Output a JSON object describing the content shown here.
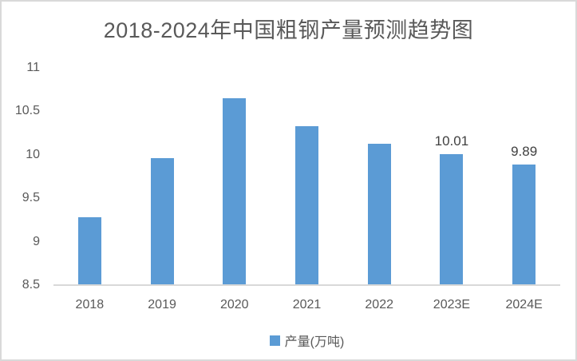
{
  "chart_data": {
    "type": "bar",
    "title": "2018-2024年中国粗钢产量预测趋势图",
    "categories": [
      "2018",
      "2019",
      "2020",
      "2021",
      "2022",
      "2023E",
      "2024E"
    ],
    "series": [
      {
        "name": "产量(万吨)",
        "values": [
          9.28,
          9.96,
          10.65,
          10.33,
          10.13,
          10.01,
          9.89
        ]
      }
    ],
    "data_labels": [
      null,
      null,
      null,
      null,
      null,
      "10.01",
      "9.89"
    ],
    "y_ticks": [
      11,
      10.5,
      10,
      9.5,
      9,
      8.5
    ],
    "ylim": [
      8.5,
      11
    ],
    "xlabel": "",
    "ylabel": "",
    "grid": false,
    "legend_position": "bottom"
  },
  "legend": {
    "label": "产量(万吨)"
  },
  "colors": {
    "bar": "#5b9bd5",
    "title_text": "#595959",
    "axis_text": "#595959",
    "data_label_text": "#404040",
    "axis_line": "#d9d9d9",
    "frame_border": "#d9d9d9",
    "background": "#ffffff"
  }
}
